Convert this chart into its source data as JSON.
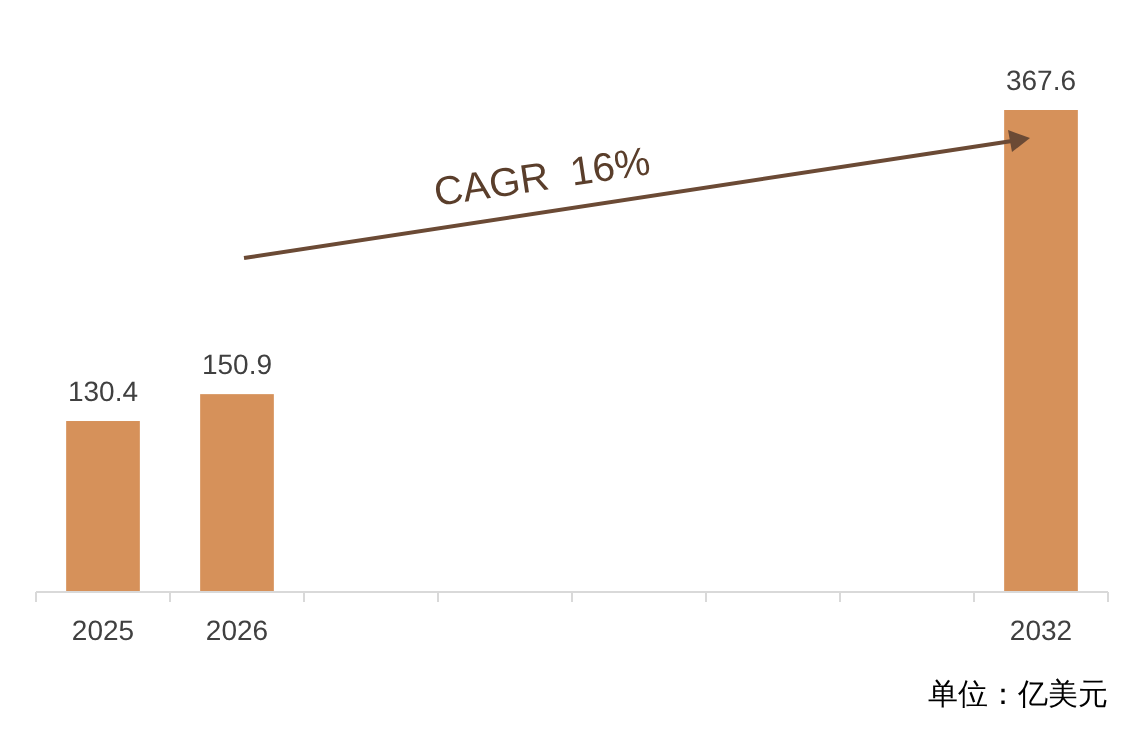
{
  "chart_data": {
    "type": "bar",
    "categories": [
      "2025",
      "2026",
      null,
      null,
      null,
      null,
      null,
      "2032"
    ],
    "values": [
      130.4,
      150.9,
      null,
      null,
      null,
      null,
      null,
      367.6
    ],
    "color": "#d6915a",
    "data_labels": true,
    "annotations": [
      "CAGR  16%",
      "单位：亿美元"
    ]
  }
}
